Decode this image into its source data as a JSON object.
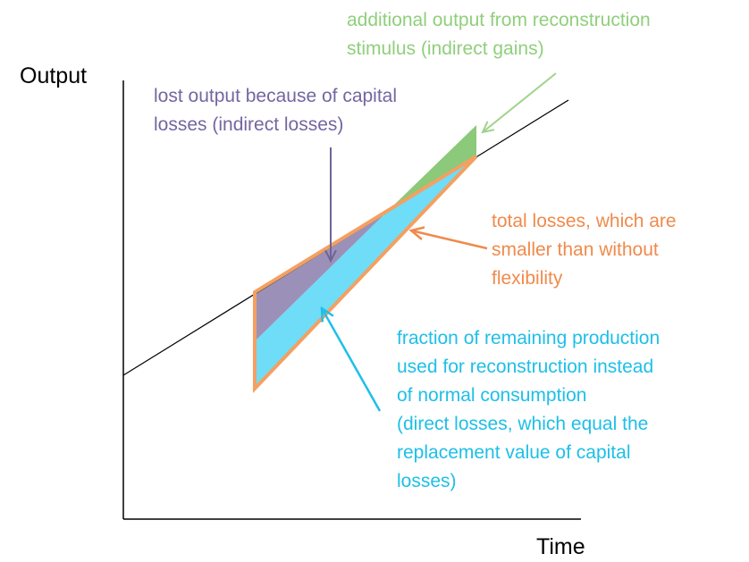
{
  "axes": {
    "y_label": "Output",
    "x_label": "Time"
  },
  "annotations": {
    "indirect_gains": [
      "additional output from reconstruction",
      "stimulus (indirect gains)"
    ],
    "indirect_losses": [
      "lost output because of capital",
      "losses (indirect losses)"
    ],
    "total_losses": [
      "total losses, which are",
      "smaller than without",
      "flexibility"
    ],
    "direct_losses": [
      "fraction of remaining production",
      "used for reconstruction instead",
      "of normal consumption",
      "(direct losses, which equal the",
      "replacement value of capital",
      "losses)"
    ]
  }
}
